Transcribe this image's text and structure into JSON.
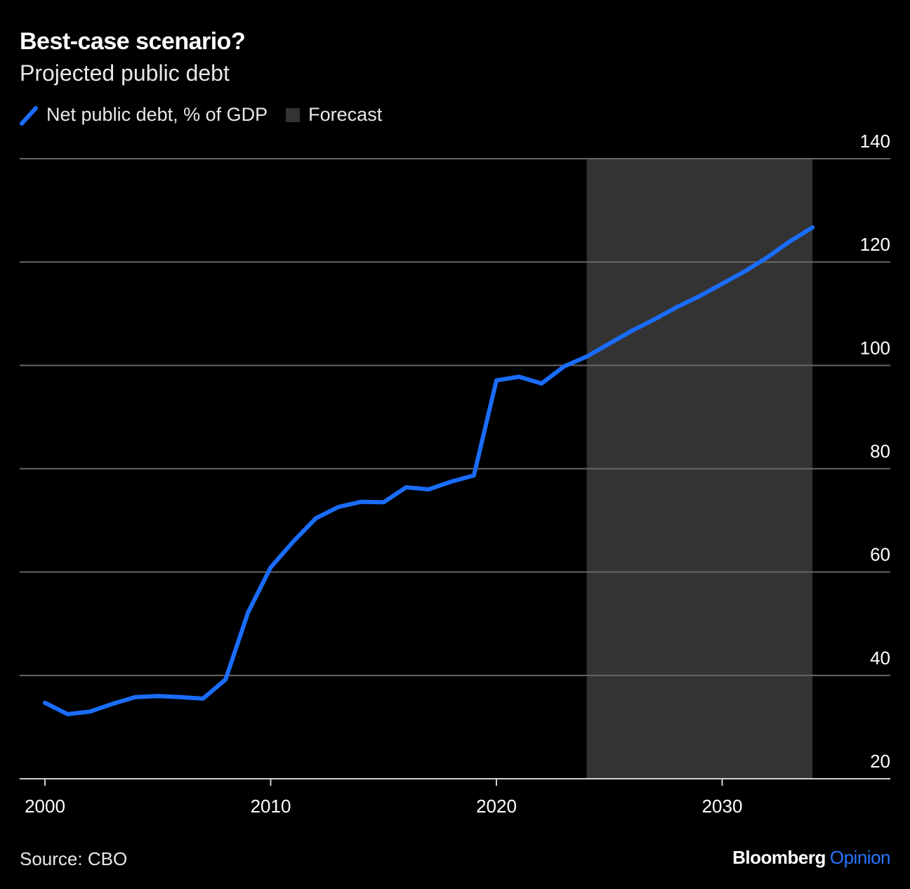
{
  "header": {
    "title": "Best-case scenario?",
    "subtitle": "Projected public debt"
  },
  "legend": {
    "series_label": "Net public debt, % of GDP",
    "forecast_label": "Forecast"
  },
  "footer": {
    "source": "Source: CBO",
    "brand_main": "Bloomberg",
    "brand_accent": "Opinion"
  },
  "colors": {
    "background": "#000000",
    "line": "#1a6dff",
    "forecast_band": "#333333",
    "gridline": "#666666",
    "brand_accent": "#2b74ff"
  },
  "chart_data": {
    "type": "line",
    "title": "Best-case scenario?",
    "subtitle": "Projected public debt",
    "xlabel": "",
    "ylabel": "",
    "xlim": [
      2000,
      2034
    ],
    "ylim": [
      20,
      140
    ],
    "x_ticks": [
      2000,
      2010,
      2020,
      2030
    ],
    "y_ticks": [
      20,
      40,
      60,
      80,
      100,
      120,
      140
    ],
    "grid": true,
    "y_axis_position": "right",
    "legend_position": "top-left",
    "forecast_range": [
      2024,
      2034
    ],
    "series": [
      {
        "name": "Net public debt, % of GDP",
        "x": [
          2000,
          2001,
          2002,
          2003,
          2004,
          2005,
          2006,
          2007,
          2008,
          2009,
          2010,
          2011,
          2012,
          2013,
          2014,
          2015,
          2016,
          2017,
          2018,
          2019,
          2020,
          2021,
          2022,
          2023,
          2024,
          2025,
          2026,
          2027,
          2028,
          2029,
          2030,
          2031,
          2032,
          2033,
          2034
        ],
        "values": [
          34.7,
          32.5,
          33.0,
          34.5,
          35.8,
          36.0,
          35.8,
          35.5,
          39.2,
          52.2,
          60.9,
          65.9,
          70.4,
          72.6,
          73.6,
          73.5,
          76.4,
          76.0,
          77.5,
          78.7,
          97.1,
          97.8,
          96.5,
          99.8,
          101.7,
          104.2,
          106.7,
          108.9,
          111.3,
          113.4,
          115.8,
          118.2,
          120.9,
          124.0,
          126.7
        ]
      }
    ]
  }
}
